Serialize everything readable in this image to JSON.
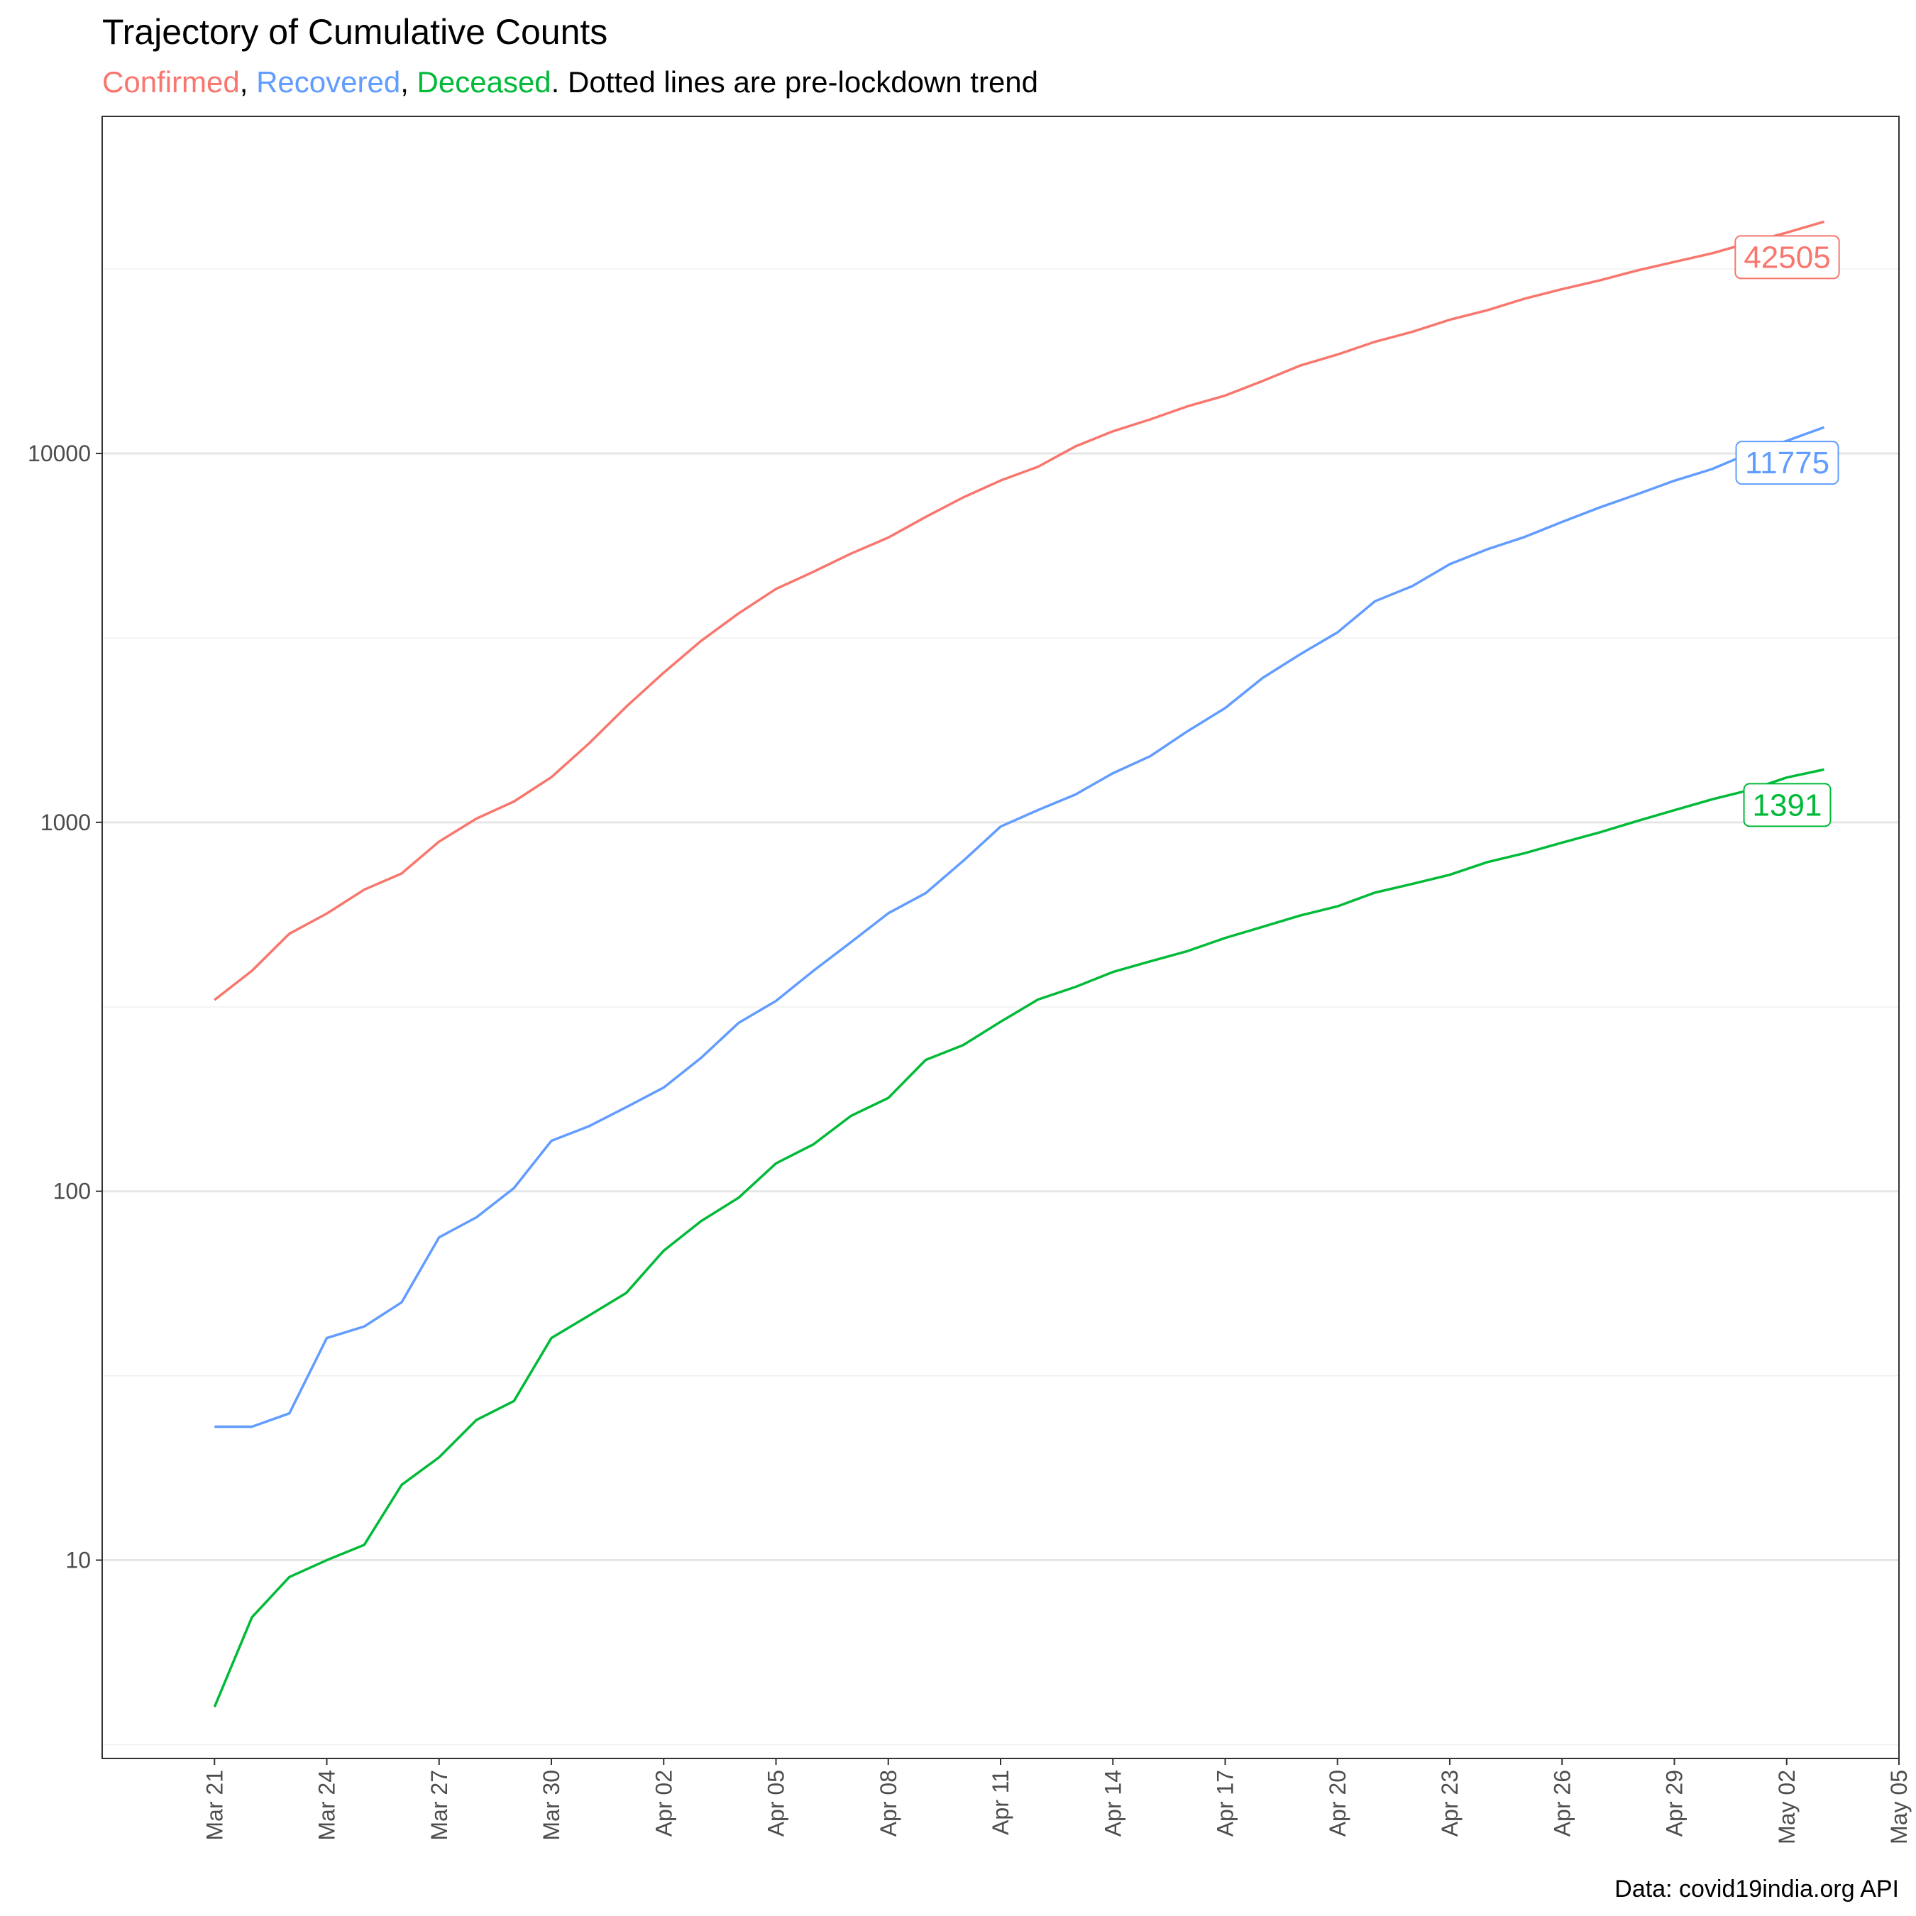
{
  "chart_data": {
    "type": "line",
    "title": "Trajectory of Cumulative Counts",
    "subtitle": {
      "parts": [
        {
          "text": "Confirmed",
          "series": "Confirmed"
        },
        {
          "text": ", "
        },
        {
          "text": "Recovered",
          "series": "Recovered"
        },
        {
          "text": ", "
        },
        {
          "text": "Deceased",
          "series": "Deceased"
        },
        {
          "text": ". Dotted lines are pre-lockdown trend"
        }
      ]
    },
    "caption": "Data: covid19india.org API",
    "xlabel": "",
    "ylabel": "",
    "x_axis": {
      "type": "date",
      "range": [
        "2020-03-18",
        "2020-05-05"
      ],
      "ticks": [
        {
          "date": "2020-03-21",
          "label": "Mar 21"
        },
        {
          "date": "2020-03-24",
          "label": "Mar 24"
        },
        {
          "date": "2020-03-27",
          "label": "Mar 27"
        },
        {
          "date": "2020-03-30",
          "label": "Mar 30"
        },
        {
          "date": "2020-04-02",
          "label": "Apr 02"
        },
        {
          "date": "2020-04-05",
          "label": "Apr 05"
        },
        {
          "date": "2020-04-08",
          "label": "Apr 08"
        },
        {
          "date": "2020-04-11",
          "label": "Apr 11"
        },
        {
          "date": "2020-04-14",
          "label": "Apr 14"
        },
        {
          "date": "2020-04-17",
          "label": "Apr 17"
        },
        {
          "date": "2020-04-20",
          "label": "Apr 20"
        },
        {
          "date": "2020-04-23",
          "label": "Apr 23"
        },
        {
          "date": "2020-04-26",
          "label": "Apr 26"
        },
        {
          "date": "2020-04-29",
          "label": "Apr 29"
        },
        {
          "date": "2020-05-02",
          "label": "May 02"
        },
        {
          "date": "2020-05-05",
          "label": "May 05"
        }
      ]
    },
    "y_axis": {
      "scale": "log10",
      "range": [
        2.9,
        82000
      ],
      "ticks": [
        {
          "value": 10,
          "label": "10"
        },
        {
          "value": 100,
          "label": "100"
        },
        {
          "value": 1000,
          "label": "1000"
        },
        {
          "value": 10000,
          "label": "10000"
        }
      ],
      "minor_gridlines": [
        3.16,
        31.6,
        316,
        3162,
        31623
      ]
    },
    "grid": true,
    "legend": "none",
    "series": [
      {
        "name": "Confirmed",
        "color": "#F8766D",
        "end_label": "42505",
        "points": [
          [
            "2020-03-21",
            330
          ],
          [
            "2020-03-22",
            396
          ],
          [
            "2020-03-23",
            499
          ],
          [
            "2020-03-24",
            566
          ],
          [
            "2020-03-25",
            657
          ],
          [
            "2020-03-26",
            727
          ],
          [
            "2020-03-27",
            887
          ],
          [
            "2020-03-28",
            1024
          ],
          [
            "2020-03-29",
            1139
          ],
          [
            "2020-03-30",
            1326
          ],
          [
            "2020-03-31",
            1635
          ],
          [
            "2020-04-01",
            2059
          ],
          [
            "2020-04-02",
            2545
          ],
          [
            "2020-04-03",
            3105
          ],
          [
            "2020-04-04",
            3684
          ],
          [
            "2020-04-05",
            4293
          ],
          [
            "2020-04-06",
            4778
          ],
          [
            "2020-04-07",
            5351
          ],
          [
            "2020-04-08",
            5916
          ],
          [
            "2020-04-09",
            6729
          ],
          [
            "2020-04-10",
            7600
          ],
          [
            "2020-04-11",
            8446
          ],
          [
            "2020-04-12",
            9205
          ],
          [
            "2020-04-13",
            10453
          ],
          [
            "2020-04-14",
            11485
          ],
          [
            "2020-04-15",
            12371
          ],
          [
            "2020-04-16",
            13432
          ],
          [
            "2020-04-17",
            14354
          ],
          [
            "2020-04-18",
            15722
          ],
          [
            "2020-04-19",
            17305
          ],
          [
            "2020-04-20",
            18544
          ],
          [
            "2020-04-21",
            20081
          ],
          [
            "2020-04-22",
            21373
          ],
          [
            "2020-04-23",
            23039
          ],
          [
            "2020-04-24",
            24447
          ],
          [
            "2020-04-25",
            26283
          ],
          [
            "2020-04-26",
            27890
          ],
          [
            "2020-04-27",
            29451
          ],
          [
            "2020-04-28",
            31324
          ],
          [
            "2020-04-29",
            33062
          ],
          [
            "2020-04-30",
            34863
          ],
          [
            "2020-05-01",
            37257
          ],
          [
            "2020-05-02",
            39699
          ],
          [
            "2020-05-03",
            42505
          ]
        ]
      },
      {
        "name": "Recovered",
        "color": "#619CFF",
        "end_label": "11775",
        "points": [
          [
            "2020-03-21",
            23
          ],
          [
            "2020-03-22",
            23
          ],
          [
            "2020-03-23",
            25
          ],
          [
            "2020-03-24",
            40
          ],
          [
            "2020-03-25",
            43
          ],
          [
            "2020-03-26",
            50
          ],
          [
            "2020-03-27",
            75
          ],
          [
            "2020-03-28",
            85
          ],
          [
            "2020-03-29",
            102
          ],
          [
            "2020-03-30",
            137
          ],
          [
            "2020-03-31",
            150
          ],
          [
            "2020-04-01",
            169
          ],
          [
            "2020-04-02",
            191
          ],
          [
            "2020-04-03",
            230
          ],
          [
            "2020-04-04",
            286
          ],
          [
            "2020-04-05",
            328
          ],
          [
            "2020-04-06",
            396
          ],
          [
            "2020-04-07",
            473
          ],
          [
            "2020-04-08",
            567
          ],
          [
            "2020-04-09",
            643
          ],
          [
            "2020-04-10",
            786
          ],
          [
            "2020-04-11",
            974
          ],
          [
            "2020-04-12",
            1080
          ],
          [
            "2020-04-13",
            1190
          ],
          [
            "2020-04-14",
            1359
          ],
          [
            "2020-04-15",
            1512
          ],
          [
            "2020-04-16",
            1768
          ],
          [
            "2020-04-17",
            2041
          ],
          [
            "2020-04-18",
            2463
          ],
          [
            "2020-04-19",
            2854
          ],
          [
            "2020-04-20",
            3273
          ],
          [
            "2020-04-21",
            3975
          ],
          [
            "2020-04-22",
            4370
          ],
          [
            "2020-04-23",
            5012
          ],
          [
            "2020-04-24",
            5498
          ],
          [
            "2020-04-25",
            5939
          ],
          [
            "2020-04-26",
            6523
          ],
          [
            "2020-04-27",
            7137
          ],
          [
            "2020-04-28",
            7747
          ],
          [
            "2020-04-29",
            8437
          ],
          [
            "2020-04-30",
            9068
          ],
          [
            "2020-05-01",
            10007
          ],
          [
            "2020-05-02",
            10819
          ],
          [
            "2020-05-03",
            11775
          ]
        ]
      },
      {
        "name": "Deceased",
        "color": "#00BA38",
        "end_label": "1391",
        "points": [
          [
            "2020-03-21",
            4
          ],
          [
            "2020-03-22",
            7
          ],
          [
            "2020-03-23",
            9
          ],
          [
            "2020-03-24",
            10
          ],
          [
            "2020-03-25",
            11
          ],
          [
            "2020-03-26",
            16
          ],
          [
            "2020-03-27",
            19
          ],
          [
            "2020-03-28",
            24
          ],
          [
            "2020-03-29",
            27
          ],
          [
            "2020-03-30",
            40
          ],
          [
            "2020-03-31",
            46
          ],
          [
            "2020-04-01",
            53
          ],
          [
            "2020-04-02",
            69
          ],
          [
            "2020-04-03",
            83
          ],
          [
            "2020-04-04",
            96
          ],
          [
            "2020-04-05",
            119
          ],
          [
            "2020-04-06",
            134
          ],
          [
            "2020-04-07",
            160
          ],
          [
            "2020-04-08",
            179
          ],
          [
            "2020-04-09",
            227
          ],
          [
            "2020-04-10",
            249
          ],
          [
            "2020-04-11",
            288
          ],
          [
            "2020-04-12",
            331
          ],
          [
            "2020-04-13",
            358
          ],
          [
            "2020-04-14",
            393
          ],
          [
            "2020-04-15",
            420
          ],
          [
            "2020-04-16",
            448
          ],
          [
            "2020-04-17",
            486
          ],
          [
            "2020-04-18",
            521
          ],
          [
            "2020-04-19",
            559
          ],
          [
            "2020-04-20",
            592
          ],
          [
            "2020-04-21",
            645
          ],
          [
            "2020-04-22",
            681
          ],
          [
            "2020-04-23",
            721
          ],
          [
            "2020-04-24",
            780
          ],
          [
            "2020-04-25",
            825
          ],
          [
            "2020-04-26",
            881
          ],
          [
            "2020-04-27",
            939
          ],
          [
            "2020-04-28",
            1008
          ],
          [
            "2020-04-29",
            1079
          ],
          [
            "2020-04-30",
            1154
          ],
          [
            "2020-05-01",
            1223
          ],
          [
            "2020-05-02",
            1323
          ],
          [
            "2020-05-03",
            1391
          ]
        ]
      }
    ]
  }
}
